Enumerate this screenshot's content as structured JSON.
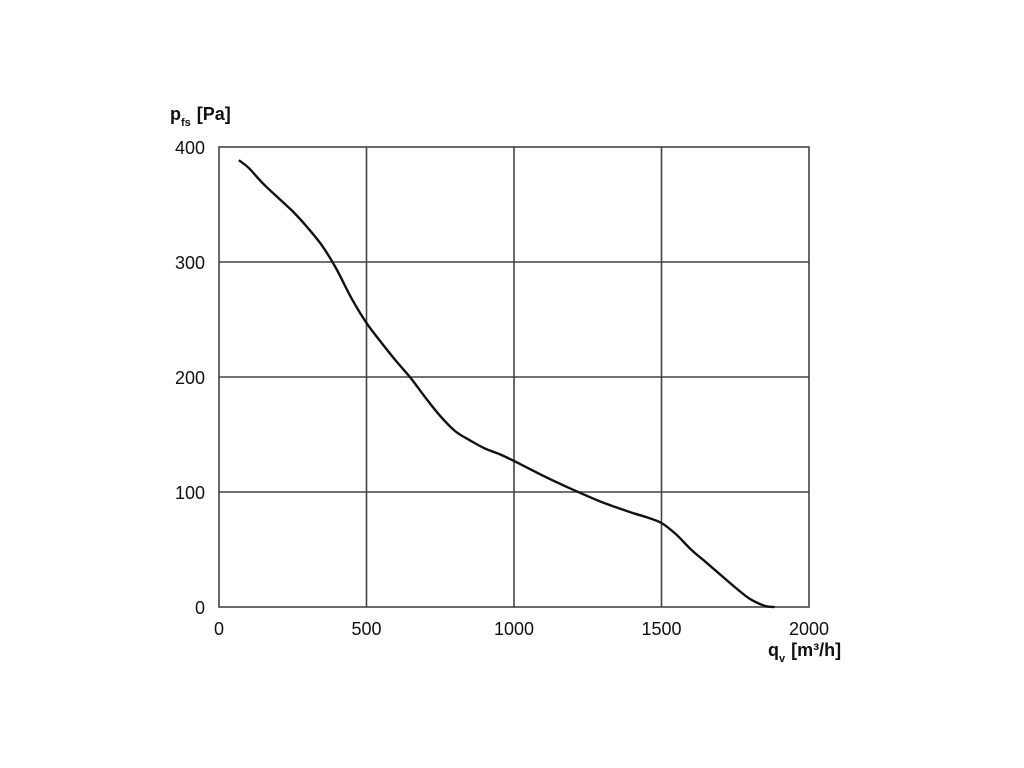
{
  "chart_data": {
    "type": "line",
    "title": "",
    "ylabel_main": "p",
    "ylabel_sub": "fs",
    "ylabel_unit": "[Pa]",
    "xlabel_main": "q",
    "xlabel_sub": "v",
    "xlabel_unit": "[m³/h]",
    "xlim": [
      0,
      2000
    ],
    "ylim": [
      0,
      400
    ],
    "x_ticks": [
      0,
      500,
      1000,
      1500,
      2000
    ],
    "y_ticks": [
      0,
      100,
      200,
      300,
      400
    ],
    "x_tick_labels": [
      "0",
      "500",
      "1000",
      "1500",
      "2000"
    ],
    "y_tick_labels": [
      "0",
      "100",
      "200",
      "300",
      "400"
    ],
    "grid": true,
    "series": [
      {
        "color": "#111111",
        "x": [
          70,
          100,
          150,
          200,
          250,
          300,
          350,
          400,
          450,
          500,
          550,
          600,
          650,
          700,
          750,
          800,
          850,
          900,
          950,
          1000,
          1100,
          1200,
          1300,
          1400,
          1450,
          1500,
          1550,
          1600,
          1650,
          1700,
          1750,
          1800,
          1850,
          1880
        ],
        "y": [
          388,
          382,
          368,
          356,
          344,
          330,
          314,
          293,
          268,
          247,
          230,
          214,
          199,
          182,
          166,
          153,
          145,
          138,
          133,
          127,
          114,
          102,
          91,
          82,
          78,
          73,
          63,
          50,
          39,
          28,
          17,
          7,
          1,
          0
        ]
      }
    ]
  }
}
